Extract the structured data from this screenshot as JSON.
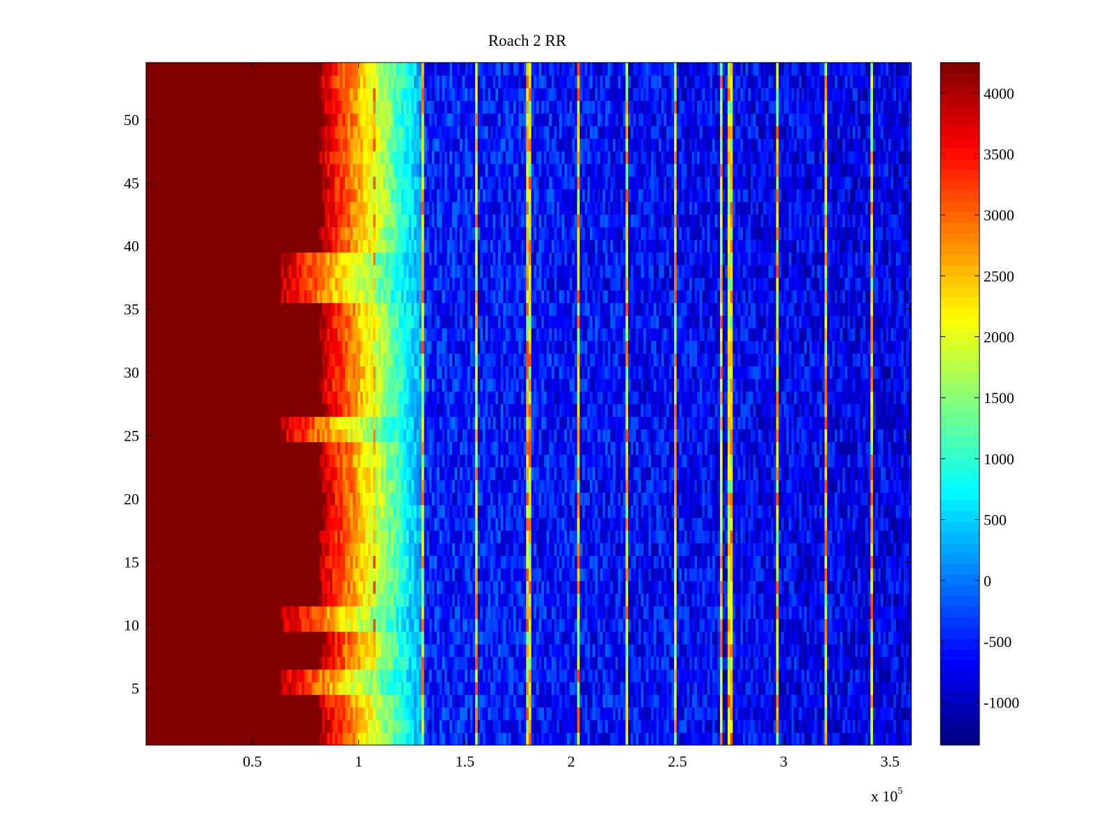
{
  "chart_data": {
    "type": "heatmap",
    "title": "Roach 2 RR",
    "xlabel": "",
    "ylabel": "",
    "x_multiplier_label": "x 10",
    "x_multiplier_exponent": "5",
    "xlim": [
      0,
      3.6
    ],
    "ylim": [
      0.5,
      54.5
    ],
    "x_ticks": [
      0.5,
      1,
      1.5,
      2,
      2.5,
      3,
      3.5
    ],
    "x_tick_labels": [
      "0.5",
      "1",
      "1.5",
      "2",
      "2.5",
      "3",
      "3.5"
    ],
    "y_ticks": [
      5,
      10,
      15,
      20,
      25,
      30,
      35,
      40,
      45,
      50
    ],
    "y_tick_labels": [
      "5",
      "10",
      "15",
      "20",
      "25",
      "30",
      "35",
      "40",
      "45",
      "50"
    ],
    "rows": 54,
    "colormap": "jet",
    "colorbar": {
      "min": -1350,
      "max": 4250,
      "ticks": [
        -1000,
        -500,
        0,
        500,
        1000,
        1500,
        2000,
        2500,
        3000,
        3500,
        4000
      ],
      "tick_labels": [
        "-1000",
        "-500",
        "0",
        "500",
        "1000",
        "1500",
        "2000",
        "2500",
        "3000",
        "3500",
        "4000"
      ]
    },
    "pattern": {
      "saturated_until_x": 0.86,
      "transition_end_x": 1.3,
      "background_level": -500,
      "spectral_lines_x": [
        1.07,
        1.3,
        1.55,
        1.8,
        2.03,
        2.26,
        2.49,
        2.71,
        2.75,
        2.97,
        3.2,
        3.41
      ],
      "extended_saturation_rows": [
        5,
        6,
        10,
        11,
        25,
        26,
        36,
        37,
        38,
        39
      ]
    }
  }
}
